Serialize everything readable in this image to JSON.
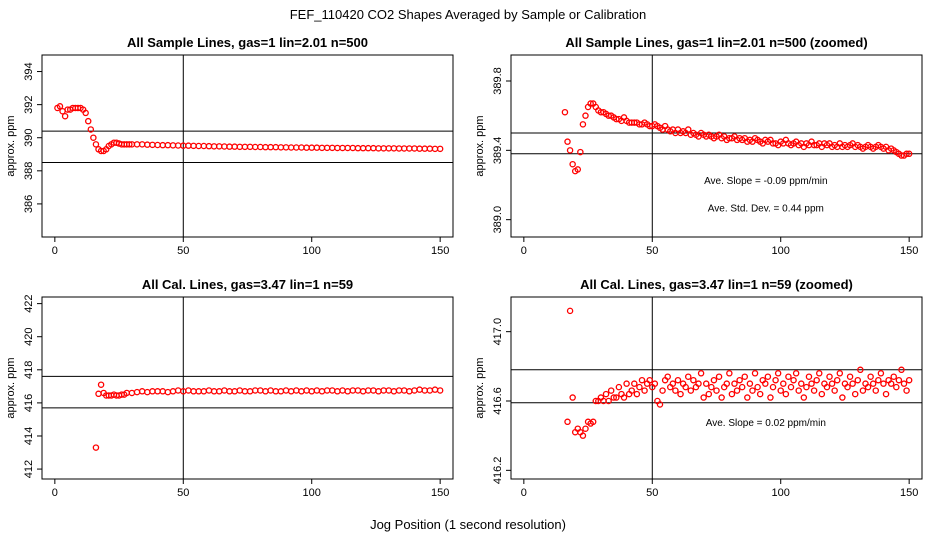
{
  "figure": {
    "title": "FEF_110420  CO2 Shapes Averaged by Sample or Calibration",
    "xlabel": "Jog Position (1 second resolution)",
    "marker_color": "#ff0000"
  },
  "chart_data": [
    {
      "type": "scatter",
      "title": "All Sample Lines, gas=1 lin=2.01 n=500",
      "xlabel": "",
      "ylabel": "approx. ppm",
      "xlim": [
        -5,
        155
      ],
      "ylim": [
        384,
        395
      ],
      "xticks": [
        0,
        50,
        100,
        150
      ],
      "yticks": [
        386,
        388,
        390,
        392,
        394
      ],
      "vline": 50,
      "hlines": [
        388.5,
        390.4
      ],
      "annotations": [],
      "series": [
        {
          "x": [
            1,
            2,
            3,
            4,
            5,
            6,
            7,
            8,
            9,
            10,
            11,
            12,
            13,
            14,
            15,
            16,
            17,
            18,
            19,
            20,
            21,
            22,
            23,
            24,
            25,
            26,
            27,
            28,
            29,
            30,
            32,
            34,
            36,
            38,
            40,
            42,
            44,
            46,
            48,
            50,
            52,
            54,
            56,
            58,
            60,
            62,
            64,
            66,
            68,
            70,
            72,
            74,
            76,
            78,
            80,
            82,
            84,
            86,
            88,
            90,
            92,
            94,
            96,
            98,
            100,
            102,
            104,
            106,
            108,
            110,
            112,
            114,
            116,
            118,
            120,
            122,
            124,
            126,
            128,
            130,
            132,
            134,
            136,
            138,
            140,
            142,
            144,
            146,
            148,
            150
          ],
          "y": [
            391.8,
            391.9,
            391.6,
            391.3,
            391.7,
            391.7,
            391.8,
            391.8,
            391.8,
            391.8,
            391.7,
            391.5,
            391.0,
            390.5,
            390.0,
            389.6,
            389.3,
            389.2,
            389.2,
            389.3,
            389.5,
            389.6,
            389.7,
            389.7,
            389.65,
            389.6,
            389.6,
            389.6,
            389.6,
            389.6,
            389.6,
            389.6,
            389.58,
            389.57,
            389.56,
            389.55,
            389.55,
            389.54,
            389.53,
            389.52,
            389.52,
            389.51,
            389.5,
            389.5,
            389.49,
            389.48,
            389.48,
            389.47,
            389.46,
            389.46,
            389.45,
            389.45,
            389.45,
            389.44,
            389.44,
            389.43,
            389.43,
            389.43,
            389.42,
            389.42,
            389.41,
            389.41,
            389.41,
            389.4,
            389.4,
            389.4,
            389.39,
            389.39,
            389.39,
            389.38,
            389.38,
            389.38,
            389.38,
            389.37,
            389.37,
            389.37,
            389.37,
            389.36,
            389.36,
            389.36,
            389.36,
            389.35,
            389.35,
            389.35,
            389.35,
            389.34,
            389.34,
            389.34,
            389.33,
            389.33
          ]
        }
      ]
    },
    {
      "type": "scatter",
      "title": "All Sample Lines, gas=1 lin=2.01 n=500 (zoomed)",
      "xlabel": "",
      "ylabel": "approx. ppm",
      "xlim": [
        -5,
        155
      ],
      "ylim": [
        388.9,
        389.95
      ],
      "xticks": [
        0,
        50,
        100,
        150
      ],
      "yticks": [
        389.0,
        389.4,
        389.8
      ],
      "ytick_labels": [
        "389.0",
        "389.4",
        "389.8"
      ],
      "vline": 50,
      "hlines": [
        389.5,
        389.38
      ],
      "annotations": [
        "Ave. Slope =  -0.09  ppm/min",
        "Ave. Std. Dev. =  0.44  ppm"
      ],
      "series": [
        {
          "x": [
            16,
            17,
            18,
            19,
            20,
            21,
            22,
            23,
            24,
            25,
            26,
            27,
            28,
            29,
            30,
            31,
            32,
            33,
            34,
            35,
            36,
            37,
            38,
            39,
            40,
            41,
            42,
            43,
            44,
            45,
            46,
            47,
            48,
            49,
            50,
            51,
            52,
            53,
            54,
            55,
            56,
            57,
            58,
            59,
            60,
            61,
            62,
            63,
            64,
            65,
            66,
            67,
            68,
            69,
            70,
            71,
            72,
            73,
            74,
            75,
            76,
            77,
            78,
            79,
            80,
            81,
            82,
            83,
            84,
            85,
            86,
            87,
            88,
            89,
            90,
            91,
            92,
            93,
            94,
            95,
            96,
            97,
            98,
            99,
            100,
            101,
            102,
            103,
            104,
            105,
            106,
            107,
            108,
            109,
            110,
            111,
            112,
            113,
            114,
            115,
            116,
            117,
            118,
            119,
            120,
            121,
            122,
            123,
            124,
            125,
            126,
            127,
            128,
            129,
            130,
            131,
            132,
            133,
            134,
            135,
            136,
            137,
            138,
            139,
            140,
            141,
            142,
            143,
            144,
            145,
            146,
            147,
            148,
            149,
            150
          ],
          "y": [
            389.62,
            389.45,
            389.4,
            389.32,
            389.28,
            389.29,
            389.39,
            389.55,
            389.6,
            389.65,
            389.67,
            389.67,
            389.65,
            389.63,
            389.62,
            389.62,
            389.61,
            389.6,
            389.6,
            389.59,
            389.58,
            389.58,
            389.57,
            389.59,
            389.57,
            389.56,
            389.56,
            389.56,
            389.56,
            389.55,
            389.55,
            389.56,
            389.55,
            389.54,
            389.54,
            389.55,
            389.54,
            389.53,
            389.52,
            389.54,
            389.52,
            389.51,
            389.52,
            389.5,
            389.52,
            389.5,
            389.51,
            389.5,
            389.52,
            389.49,
            389.5,
            389.49,
            389.48,
            389.5,
            389.49,
            389.48,
            389.49,
            389.48,
            389.47,
            389.48,
            389.49,
            389.47,
            389.48,
            389.46,
            389.47,
            389.47,
            389.48,
            389.46,
            389.47,
            389.46,
            389.47,
            389.45,
            389.46,
            389.45,
            389.47,
            389.46,
            389.45,
            389.44,
            389.46,
            389.45,
            389.46,
            389.44,
            389.44,
            389.43,
            389.45,
            389.44,
            389.46,
            389.44,
            389.43,
            389.44,
            389.45,
            389.43,
            389.44,
            389.42,
            389.44,
            389.43,
            389.45,
            389.43,
            389.43,
            389.44,
            389.42,
            389.44,
            389.43,
            389.44,
            389.42,
            389.43,
            389.42,
            389.44,
            389.42,
            389.43,
            389.42,
            389.43,
            389.44,
            389.42,
            389.43,
            389.42,
            389.41,
            389.42,
            389.43,
            389.42,
            389.41,
            389.42,
            389.43,
            389.42,
            389.41,
            389.42,
            389.4,
            389.41,
            389.4,
            389.39,
            389.38,
            389.37,
            389.37,
            389.38,
            389.38
          ]
        }
      ]
    },
    {
      "type": "scatter",
      "title": "All Cal. Lines, gas=3.47 lin=1 n=59",
      "xlabel": "",
      "ylabel": "approx. ppm",
      "xlim": [
        -5,
        155
      ],
      "ylim": [
        411.4,
        422.4
      ],
      "xticks": [
        0,
        50,
        100,
        150
      ],
      "yticks": [
        412,
        414,
        416,
        418,
        420,
        422
      ],
      "vline": 50,
      "hlines": [
        417.6,
        415.7
      ],
      "annotations": [],
      "series": [
        {
          "x": [
            16,
            17,
            18,
            19,
            20,
            21,
            22,
            23,
            24,
            25,
            26,
            27,
            28,
            30,
            32,
            34,
            36,
            38,
            40,
            42,
            44,
            46,
            48,
            50,
            52,
            54,
            56,
            58,
            60,
            62,
            64,
            66,
            68,
            70,
            72,
            74,
            76,
            78,
            80,
            82,
            84,
            86,
            88,
            90,
            92,
            94,
            96,
            98,
            100,
            102,
            104,
            106,
            108,
            110,
            112,
            114,
            116,
            118,
            120,
            122,
            124,
            126,
            128,
            130,
            132,
            134,
            136,
            138,
            140,
            142,
            144,
            146,
            148,
            150
          ],
          "y": [
            413.3,
            416.55,
            417.1,
            416.6,
            416.45,
            416.45,
            416.45,
            416.5,
            416.45,
            416.45,
            416.5,
            416.5,
            416.6,
            416.6,
            416.65,
            416.7,
            416.65,
            416.7,
            416.7,
            416.7,
            416.65,
            416.7,
            416.75,
            416.7,
            416.75,
            416.7,
            416.7,
            416.7,
            416.75,
            416.7,
            416.7,
            416.75,
            416.7,
            416.7,
            416.75,
            416.7,
            416.7,
            416.75,
            416.75,
            416.7,
            416.75,
            416.7,
            416.7,
            416.75,
            416.7,
            416.75,
            416.7,
            416.75,
            416.7,
            416.75,
            416.7,
            416.75,
            416.75,
            416.7,
            416.75,
            416.7,
            416.75,
            416.75,
            416.7,
            416.75,
            416.75,
            416.7,
            416.75,
            416.75,
            416.7,
            416.75,
            416.75,
            416.7,
            416.75,
            416.8,
            416.75,
            416.75,
            416.8,
            416.75
          ]
        }
      ]
    },
    {
      "type": "scatter",
      "title": "All Cal. Lines, gas=3.47 lin=1 n=59 (zoomed)",
      "xlabel": "",
      "ylabel": "approx. ppm",
      "xlim": [
        -5,
        155
      ],
      "ylim": [
        416.15,
        417.2
      ],
      "xticks": [
        0,
        50,
        100,
        150
      ],
      "yticks": [
        416.2,
        416.6,
        417.0
      ],
      "ytick_labels": [
        "416.2",
        "416.6",
        "417.0"
      ],
      "vline": 50,
      "hlines": [
        416.78,
        416.59
      ],
      "annotations": [
        "Ave. Slope =  0.02  ppm/min"
      ],
      "series": [
        {
          "x": [
            17,
            18,
            19,
            20,
            21,
            22,
            23,
            24,
            25,
            26,
            27,
            28,
            29,
            30,
            31,
            32,
            33,
            34,
            35,
            36,
            37,
            38,
            39,
            40,
            41,
            42,
            43,
            44,
            45,
            46,
            47,
            48,
            49,
            50,
            51,
            52,
            53,
            54,
            55,
            56,
            57,
            58,
            59,
            60,
            61,
            62,
            63,
            64,
            65,
            66,
            67,
            68,
            69,
            70,
            71,
            72,
            73,
            74,
            75,
            76,
            77,
            78,
            79,
            80,
            81,
            82,
            83,
            84,
            85,
            86,
            87,
            88,
            89,
            90,
            91,
            92,
            93,
            94,
            95,
            96,
            97,
            98,
            99,
            100,
            101,
            102,
            103,
            104,
            105,
            106,
            107,
            108,
            109,
            110,
            111,
            112,
            113,
            114,
            115,
            116,
            117,
            118,
            119,
            120,
            121,
            122,
            123,
            124,
            125,
            126,
            127,
            128,
            129,
            130,
            131,
            132,
            133,
            134,
            135,
            136,
            137,
            138,
            139,
            140,
            141,
            142,
            143,
            144,
            145,
            146,
            147,
            148,
            149,
            150
          ],
          "y": [
            416.48,
            417.12,
            416.62,
            416.42,
            416.44,
            416.42,
            416.4,
            416.44,
            416.48,
            416.47,
            416.48,
            416.6,
            416.6,
            416.62,
            416.6,
            416.64,
            416.6,
            416.66,
            416.62,
            416.62,
            416.68,
            416.64,
            416.62,
            416.7,
            416.64,
            416.66,
            416.7,
            416.64,
            416.68,
            416.72,
            416.66,
            416.7,
            416.72,
            416.68,
            416.7,
            416.6,
            416.58,
            416.66,
            416.72,
            416.74,
            416.68,
            416.7,
            416.66,
            416.72,
            416.64,
            416.7,
            416.68,
            416.74,
            416.66,
            416.72,
            416.68,
            416.7,
            416.76,
            416.62,
            416.7,
            416.64,
            416.68,
            416.72,
            416.66,
            416.74,
            416.62,
            416.68,
            416.7,
            416.76,
            416.64,
            416.7,
            416.66,
            416.72,
            416.68,
            416.74,
            416.62,
            416.7,
            416.66,
            416.76,
            416.68,
            416.64,
            416.72,
            416.7,
            416.74,
            416.62,
            416.68,
            416.72,
            416.76,
            416.66,
            416.7,
            416.64,
            416.74,
            416.68,
            416.72,
            416.76,
            416.66,
            416.7,
            416.62,
            416.68,
            416.74,
            416.7,
            416.66,
            416.72,
            416.76,
            416.64,
            416.7,
            416.68,
            416.74,
            416.7,
            416.66,
            416.72,
            416.76,
            416.62,
            416.7,
            416.68,
            416.74,
            416.7,
            416.64,
            416.72,
            416.78,
            416.66,
            416.7,
            416.68,
            416.74,
            416.7,
            416.66,
            416.72,
            416.76,
            416.7,
            416.64,
            416.72,
            416.7,
            416.74,
            416.68,
            416.72,
            416.78,
            416.7,
            416.66,
            416.72
          ]
        }
      ]
    }
  ]
}
